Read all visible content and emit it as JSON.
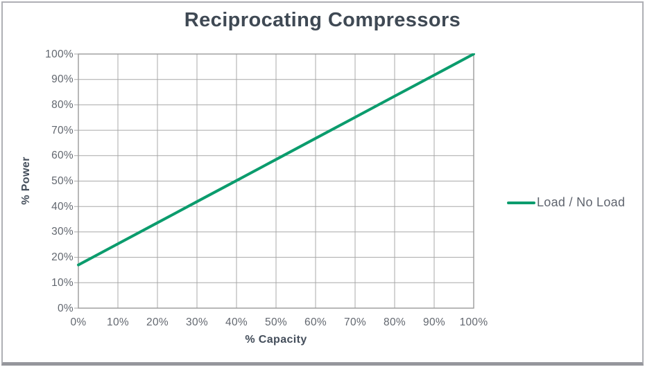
{
  "title": {
    "text": "Reciprocating Compressors",
    "color": "#3f4954"
  },
  "axes": {
    "y_label": "% Power",
    "x_label": "% Capacity",
    "label_color": "#434d5a",
    "tick_color": "#62676f"
  },
  "legend": {
    "label": "Load / No Load",
    "swatch_color": "#0b9c6d",
    "text_color": "#5f646e"
  },
  "frame": {
    "border_color": "#aeafb4",
    "bottom_edge_color": "#95969c"
  },
  "chart_data": {
    "type": "line",
    "title": "Reciprocating Compressors",
    "xlabel": "% Capacity",
    "ylabel": "% Power",
    "xlim": [
      0,
      100
    ],
    "ylim": [
      0,
      100
    ],
    "x_ticks": [
      "0%",
      "10%",
      "20%",
      "30%",
      "40%",
      "50%",
      "60%",
      "70%",
      "80%",
      "90%",
      "100%"
    ],
    "y_ticks": [
      "0%",
      "10%",
      "20%",
      "30%",
      "40%",
      "50%",
      "60%",
      "70%",
      "80%",
      "90%",
      "100%"
    ],
    "grid": true,
    "grid_color": "#a8a8a8",
    "plot_border_color": "#9a9a9a",
    "legend_position": "right-center",
    "series": [
      {
        "name": "Load / No Load",
        "color": "#0b9c6d",
        "x": [
          0,
          10,
          20,
          30,
          40,
          50,
          60,
          70,
          80,
          90,
          100
        ],
        "y": [
          17,
          25.3,
          33.6,
          41.9,
          50.2,
          58.5,
          66.8,
          75.1,
          83.4,
          91.7,
          100
        ]
      }
    ]
  }
}
